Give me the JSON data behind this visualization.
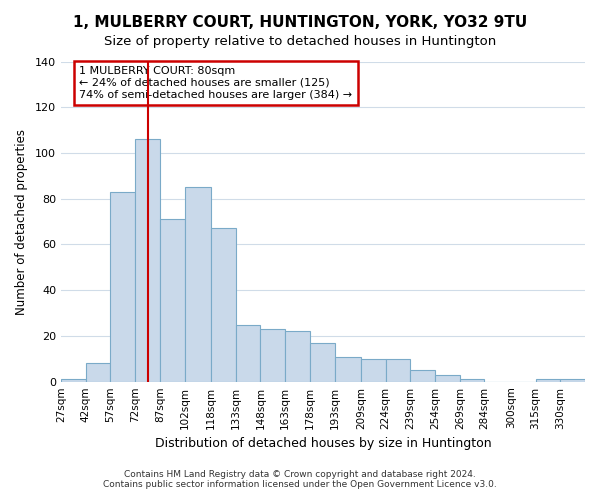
{
  "title": "1, MULBERRY COURT, HUNTINGTON, YORK, YO32 9TU",
  "subtitle": "Size of property relative to detached houses in Huntington",
  "xlabel": "Distribution of detached houses by size in Huntington",
  "ylabel": "Number of detached properties",
  "bar_edges": [
    27,
    42,
    57,
    72,
    87,
    102,
    118,
    133,
    148,
    163,
    178,
    193,
    209,
    224,
    239,
    254,
    269,
    284,
    300,
    315,
    330
  ],
  "bar_heights": [
    1,
    8,
    83,
    106,
    71,
    85,
    67,
    25,
    23,
    22,
    17,
    11,
    10,
    10,
    5,
    3,
    1,
    0,
    0,
    1,
    1
  ],
  "bar_color": "#c9d9ea",
  "bar_edge_color": "#7aaac8",
  "red_line_x": 80,
  "annotation_title": "1 MULBERRY COURT: 80sqm",
  "annotation_line1": "← 24% of detached houses are smaller (125)",
  "annotation_line2": "74% of semi-detached houses are larger (384) →",
  "annotation_box_color": "#cc0000",
  "ylim": [
    0,
    140
  ],
  "yticks": [
    0,
    20,
    40,
    60,
    80,
    100,
    120,
    140
  ],
  "tick_labels": [
    "27sqm",
    "42sqm",
    "57sqm",
    "72sqm",
    "87sqm",
    "102sqm",
    "118sqm",
    "133sqm",
    "148sqm",
    "163sqm",
    "178sqm",
    "193sqm",
    "209sqm",
    "224sqm",
    "239sqm",
    "254sqm",
    "269sqm",
    "284sqm",
    "300sqm",
    "315sqm",
    "330sqm"
  ],
  "footer1": "Contains HM Land Registry data © Crown copyright and database right 2024.",
  "footer2": "Contains public sector information licensed under the Open Government Licence v3.0.",
  "background_color": "#ffffff",
  "grid_color": "#d0dce8",
  "title_fontsize": 11,
  "subtitle_fontsize": 9.5
}
